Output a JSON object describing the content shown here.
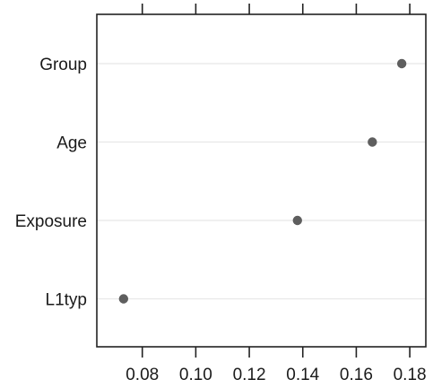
{
  "chart_data": {
    "type": "scatter",
    "title": "",
    "xlabel": "",
    "ylabel": "",
    "categories": [
      "Group",
      "Age",
      "Exposure",
      "L1typ"
    ],
    "values": [
      0.177,
      0.166,
      0.138,
      0.073
    ],
    "xlim": [
      0.063,
      0.186
    ],
    "xticks": [
      0.08,
      0.1,
      0.12,
      0.14,
      0.16,
      0.18
    ],
    "xtick_labels": [
      "0.08",
      "0.10",
      "0.12",
      "0.14",
      "0.16",
      "0.18"
    ],
    "grid": "horizontal reference lines at each category",
    "colors": {
      "point": "#5e5e5e",
      "grid": "#e8e8e8",
      "axis": "#222222"
    }
  }
}
